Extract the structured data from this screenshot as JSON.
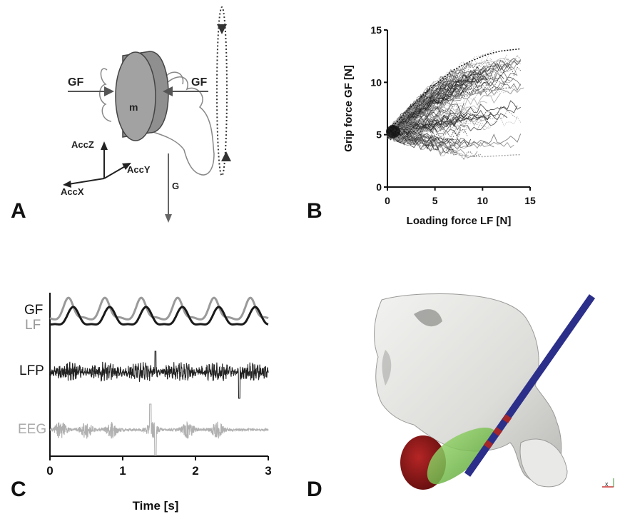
{
  "panels": {
    "a": {
      "label": "A",
      "gf_left": "GF",
      "gf_right": "GF",
      "mass": "m",
      "acc_z": "AccZ",
      "acc_y": "AccY",
      "acc_x": "AccX",
      "gravity": "G"
    },
    "b": {
      "label": "B"
    },
    "c": {
      "label": "C",
      "trace_gf": "GF",
      "trace_lf": "LF",
      "trace_lfp": "LFP",
      "trace_eeg": "EEG"
    },
    "d": {
      "label": "D",
      "axis_mark": "x"
    }
  },
  "colors": {
    "gf_trace": "#1a1a1a",
    "lf_trace": "#9a9a9a",
    "lfp_trace": "#222222",
    "eeg_trace": "#b0b0b0",
    "mass": "#9a9a9a",
    "brain": "#e4e4e2",
    "electrode": "#2b2f8a",
    "target_red": "#8b1a1a",
    "target_green": "#7ac943"
  },
  "chart_data": [
    {
      "type": "scatter",
      "xlabel": "Loading force LF [N]",
      "ylabel": "Grip force GF [N]",
      "xlim": [
        0,
        15
      ],
      "ylim": [
        0,
        15
      ],
      "xticks": [
        "0",
        "5",
        "10",
        "15"
      ],
      "yticks": [
        "0",
        "5",
        "10",
        "15"
      ],
      "grid": false,
      "series": [
        {
          "color": "#111111",
          "x": [
            0,
            1,
            2,
            3,
            4,
            5,
            6,
            7,
            8,
            9,
            10,
            11,
            12,
            13,
            14
          ],
          "y": [
            5.2,
            6.2,
            7.2,
            8.1,
            9.0,
            9.8,
            10.5,
            11.2,
            11.7,
            12.1,
            12.5,
            12.8,
            13.0,
            13.1,
            13.2
          ]
        },
        {
          "color": "#8a8a8a",
          "x": [
            0,
            1,
            2,
            3,
            4,
            5,
            6,
            7,
            8,
            9,
            10,
            11,
            12,
            13
          ],
          "y": [
            5.0,
            5.5,
            6.0,
            6.6,
            7.1,
            7.6,
            8.0,
            8.4,
            8.6,
            8.9,
            9.1,
            9.2,
            9.4,
            9.5
          ]
        },
        {
          "color": "#aaaaaa",
          "x": [
            0,
            2,
            4,
            6,
            8,
            10,
            12,
            14
          ],
          "y": [
            5.0,
            4.3,
            3.8,
            3.3,
            3.0,
            2.9,
            3.0,
            3.1
          ]
        }
      ]
    },
    {
      "type": "line",
      "xlabel": "Time [s]",
      "ylabel": "",
      "xlim": [
        0,
        3
      ],
      "xticks": [
        "0",
        "1",
        "2",
        "3"
      ],
      "grid": false,
      "series": [
        {
          "name": "GF",
          "period_s": 0.5,
          "phase_s": 0.32
        },
        {
          "name": "LF",
          "period_s": 0.5,
          "phase_s": 0.26
        },
        {
          "name": "LFP"
        },
        {
          "name": "EEG"
        }
      ]
    }
  ]
}
